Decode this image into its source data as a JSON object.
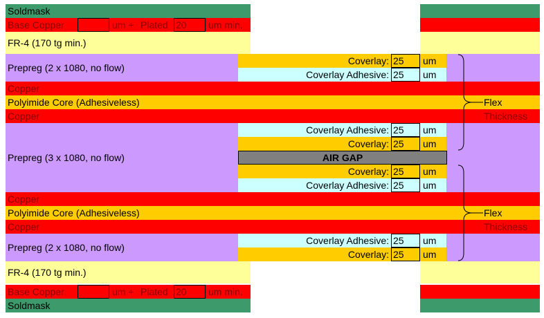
{
  "soldmask": "Soldmask",
  "base_copper": {
    "label": "Base Copper",
    "plus": "um +",
    "plated": "Plated",
    "plated_value": "20",
    "unit_min": "um min."
  },
  "fr4": "FR-4 (170 tg min.)",
  "prepreg_top": "Prepreg (2 x 1080, no flow)",
  "prepreg_mid": "Prepreg (3 x 1080, no flow)",
  "prepreg_bottom": "Prepreg (2 x 1080, no flow)",
  "copper": "Copper",
  "polyimide": "Polyimide Core (Adhesiveless)",
  "coverlay": "Coverlay:",
  "coverlay_adhesive": "Coverlay Adhesive:",
  "thickness_value": "25",
  "unit": "um",
  "air_gap": "AIR GAP",
  "flex": "Flex",
  "thickness": "Thickness",
  "colors": {
    "green": "#3d9a6a",
    "red": "#ff0000",
    "yellow": "#ffff99",
    "purple": "#cc99ff",
    "orange": "#ffcc00",
    "cyan": "#ccffff",
    "gray": "#808080"
  }
}
